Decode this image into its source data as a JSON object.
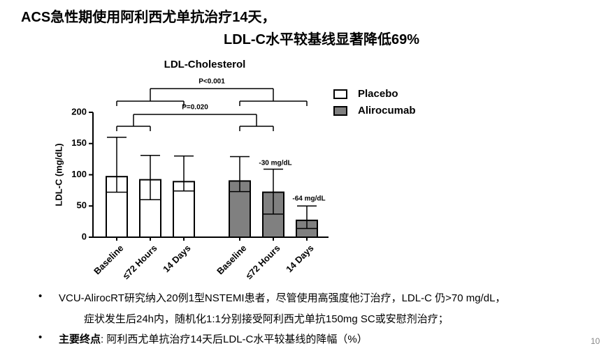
{
  "header": {
    "title_line1": "ACS急性期使用阿利西尤单抗治疗14天，",
    "title_line2": "LDL-C水平较基线显著降低69%"
  },
  "chart_data": {
    "type": "bar",
    "title": "LDL-Cholesterol",
    "ylabel": "LDL-C (mg/dL)",
    "categories": [
      "Baseline",
      "≤72 Hours",
      "14 Days",
      "Baseline",
      "≤72 Hours",
      "14 Days"
    ],
    "series": [
      {
        "name": "Placebo",
        "color": "#ffffff",
        "values": [
          97,
          92,
          89,
          null,
          null,
          null
        ],
        "error_upper": [
          63,
          39,
          41,
          null,
          null,
          null
        ],
        "error_lower": [
          25,
          32,
          15,
          null,
          null,
          null
        ]
      },
      {
        "name": "Alirocumab",
        "color": "#808080",
        "values": [
          null,
          null,
          null,
          90,
          72,
          27
        ],
        "error_upper": [
          null,
          null,
          null,
          39,
          37,
          23
        ],
        "error_lower": [
          null,
          null,
          null,
          17,
          35,
          13
        ]
      }
    ],
    "ylim": [
      0,
      200
    ],
    "yticks": [
      0,
      50,
      100,
      150,
      200
    ],
    "annotations": [
      {
        "text": "-30 mg/dL"
      },
      {
        "text": "-64 mg/dL"
      }
    ],
    "comparisons": [
      {
        "label": "P<0.001"
      },
      {
        "label": "P=0.020"
      }
    ],
    "legend": "upper right"
  },
  "bullets": [
    {
      "line1": "VCU-AlirocRT研究纳入20例1型NSTEMI患者，尽管使用高强度他汀治疗，LDL-C 仍>70 mg/dL，",
      "line2": "症状发生后24h内，随机化1:1分别接受阿利西尤单抗150mg SC或安慰剂治疗；"
    },
    {
      "label": "主要终点",
      "text": ": 阿利西尤单抗治疗14天后LDL-C水平较基线的降幅（%）"
    }
  ],
  "page_number": "10"
}
